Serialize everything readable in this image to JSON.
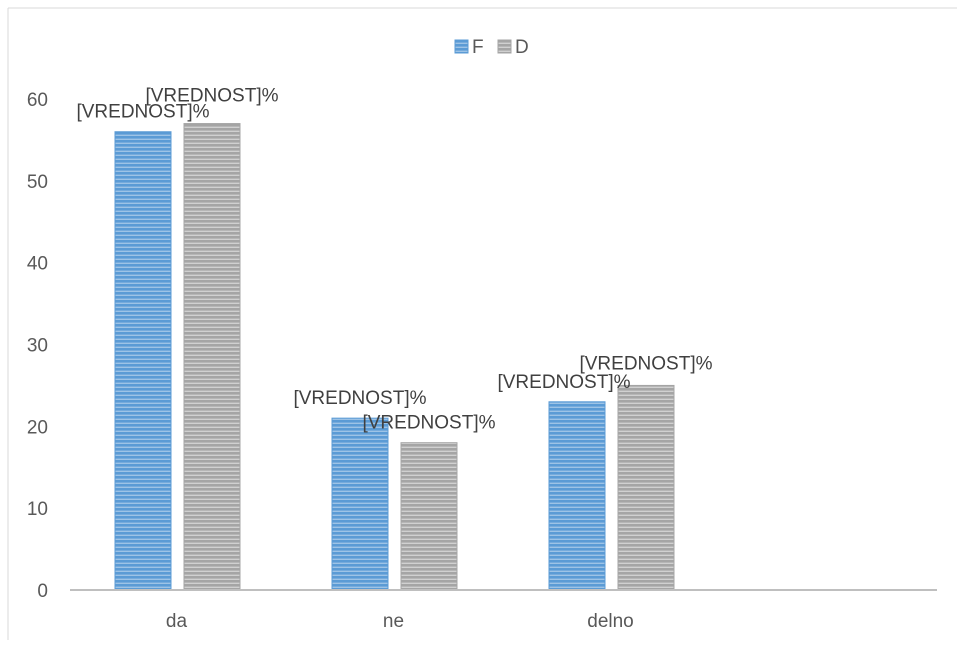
{
  "chart_data": {
    "type": "bar",
    "categories": [
      "da",
      "ne",
      "delno"
    ],
    "series": [
      {
        "name": "F",
        "values": [
          56,
          21,
          23
        ],
        "color": "#5B9BD5"
      },
      {
        "name": "D",
        "values": [
          57,
          18,
          25
        ],
        "color": "#A5A5A5"
      }
    ],
    "data_label_text": "[VREDNOST]%",
    "ylim": [
      0,
      60
    ],
    "yticks": [
      0,
      10,
      20,
      30,
      40,
      50,
      60
    ],
    "grid": false,
    "legend_position": "top",
    "pattern": "horizontal-stripes"
  }
}
